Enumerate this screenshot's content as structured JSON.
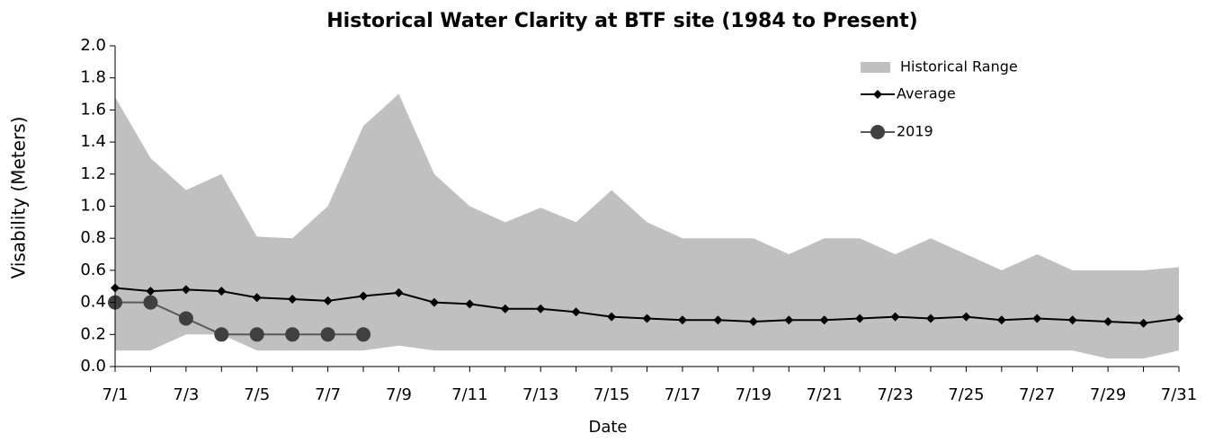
{
  "chart_data": {
    "type": "range-line",
    "title": "Historical Water Clarity at BTF site (1984 to Present)",
    "x_label": "Date",
    "y_label": "Visability (Meters)",
    "categories": [
      "7/1",
      null,
      "7/3",
      null,
      "7/5",
      null,
      "7/7",
      null,
      "7/9",
      null,
      "7/11",
      null,
      "7/13",
      null,
      "7/15",
      null,
      "7/17",
      null,
      "7/19",
      null,
      "7/21",
      null,
      "7/23",
      null,
      "7/25",
      null,
      "7/27",
      null,
      "7/29",
      null,
      "7/31"
    ],
    "series": [
      {
        "name": "Historical Range",
        "color": "#c0c0c0",
        "upper": [
          1.68,
          1.3,
          1.1,
          1.2,
          0.81,
          0.8,
          1.0,
          1.5,
          1.7,
          1.2,
          1.0,
          0.9,
          0.99,
          0.9,
          1.1,
          0.9,
          0.8,
          0.8,
          0.8,
          0.7,
          0.8,
          0.8,
          0.7,
          0.8,
          0.7,
          0.6,
          0.7,
          0.6,
          0.6,
          0.6,
          0.62
        ],
        "lower": [
          0.1,
          0.1,
          0.2,
          0.2,
          0.1,
          0.1,
          0.1,
          0.1,
          0.13,
          0.1,
          0.1,
          0.1,
          0.1,
          0.1,
          0.1,
          0.1,
          0.1,
          0.1,
          0.1,
          0.1,
          0.1,
          0.1,
          0.1,
          0.1,
          0.1,
          0.1,
          0.1,
          0.1,
          0.05,
          0.05,
          0.1
        ]
      },
      {
        "name": "Average",
        "color": "#000000",
        "values": [
          0.49,
          0.47,
          0.48,
          0.47,
          0.43,
          0.42,
          0.41,
          0.44,
          0.46,
          0.4,
          0.39,
          0.36,
          0.36,
          0.34,
          0.31,
          0.3,
          0.29,
          0.29,
          0.28,
          0.29,
          0.29,
          0.3,
          0.31,
          0.3,
          0.31,
          0.29,
          0.3,
          0.29,
          0.28,
          0.27,
          0.3
        ]
      },
      {
        "name": "2019",
        "color": "#404040",
        "values": [
          0.4,
          0.4,
          0.3,
          0.2,
          0.2,
          0.2,
          0.2,
          0.2,
          null,
          null,
          null,
          null,
          null,
          null,
          null,
          null,
          null,
          null,
          null,
          null,
          null,
          null,
          null,
          null,
          null,
          null,
          null,
          null,
          null,
          null,
          null
        ]
      }
    ],
    "ylim": [
      0,
      2.0
    ],
    "yticks": [
      {
        "value": 0,
        "label": "0.0"
      },
      0.2,
      0.4,
      0.6,
      0.8,
      {
        "value": 1,
        "label": "1.0"
      },
      1.2,
      1.4,
      1.6,
      1.8,
      {
        "value": 2,
        "label": "2.0"
      }
    ],
    "grid": false,
    "legend": "top-right"
  }
}
